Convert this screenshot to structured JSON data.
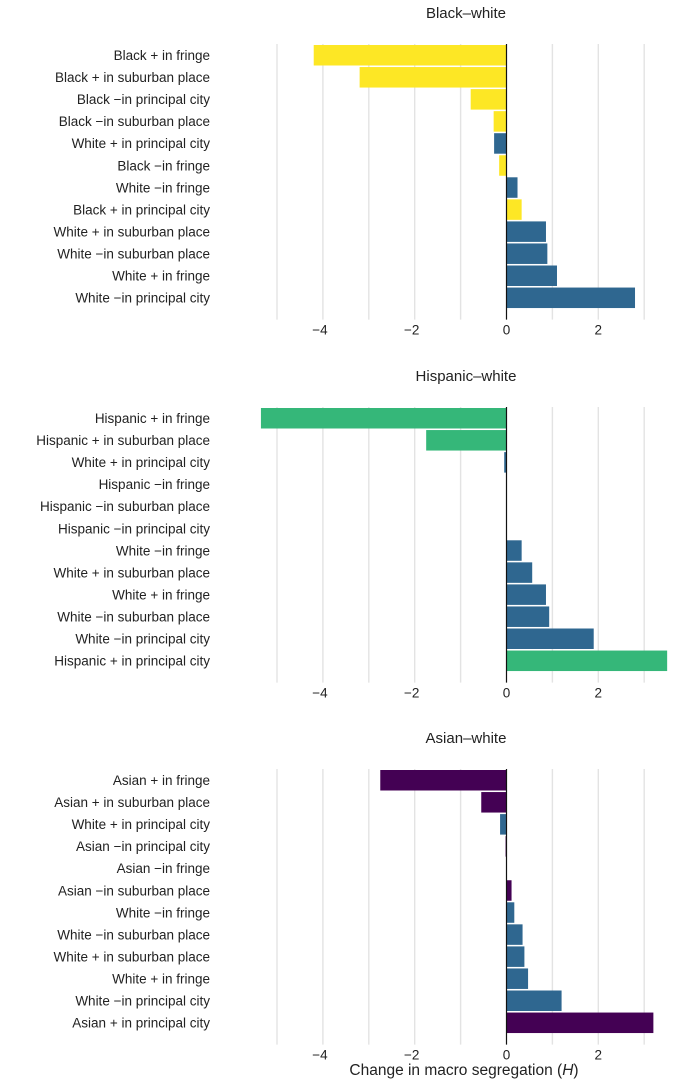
{
  "colors": {
    "white_group": "#2f6790",
    "black_group": "#fde725",
    "hispanic_group": "#35b779",
    "asian_group": "#440154",
    "gridline": "#e3e3e3"
  },
  "chart_data": [
    {
      "type": "bar",
      "orientation": "horizontal",
      "title": "Black–white",
      "xlim": [
        -5,
        3.5
      ],
      "xticks": [
        -4,
        -2,
        0,
        2
      ],
      "xtick_labels": [
        "−4",
        "−2",
        "0",
        "2"
      ],
      "grid": true,
      "categories": [
        "Black + in fringe",
        "Black + in suburban place",
        "Black −in principal city",
        "Black −in suburban place",
        "White + in principal city",
        "Black −in fringe",
        "White −in fringe",
        "Black + in principal city",
        "White + in suburban place",
        "White −in suburban place",
        "White + in fringe",
        "White −in principal city"
      ],
      "values": [
        -4.2,
        -3.2,
        -0.78,
        -0.28,
        -0.27,
        -0.16,
        0.24,
        0.33,
        0.86,
        0.89,
        1.1,
        2.8
      ],
      "groups": [
        "black",
        "black",
        "black",
        "black",
        "white",
        "black",
        "white",
        "black",
        "white",
        "white",
        "white",
        "white"
      ]
    },
    {
      "type": "bar",
      "orientation": "horizontal",
      "title": "Hispanic–white",
      "xlim": [
        -5,
        3.5
      ],
      "xticks": [
        -4,
        -2,
        0,
        2
      ],
      "xtick_labels": [
        "−4",
        "−2",
        "0",
        "2"
      ],
      "grid": true,
      "categories": [
        "Hispanic + in fringe",
        "Hispanic + in suburban place",
        "White + in principal city",
        "Hispanic −in fringe",
        "Hispanic −in suburban place",
        "Hispanic −in principal city",
        "White −in fringe",
        "White + in suburban place",
        "White + in fringe",
        "White −in suburban place",
        "White −in principal city",
        "Hispanic + in principal city"
      ],
      "values": [
        -5.35,
        -1.75,
        -0.05,
        -0.01,
        -0.01,
        0.0,
        0.33,
        0.56,
        0.86,
        0.93,
        1.9,
        3.5
      ],
      "groups": [
        "hispanic",
        "hispanic",
        "white",
        "hispanic",
        "hispanic",
        "hispanic",
        "white",
        "white",
        "white",
        "white",
        "white",
        "hispanic"
      ]
    },
    {
      "type": "bar",
      "orientation": "horizontal",
      "title": "Asian–white",
      "xlim": [
        -5,
        3.5
      ],
      "xticks": [
        -4,
        -2,
        0,
        2
      ],
      "xtick_labels": [
        "−4",
        "−2",
        "0",
        "2"
      ],
      "xlabel": "Change in macro segregation (H)",
      "grid": true,
      "categories": [
        "Asian + in fringe",
        "Asian + in suburban place",
        "White + in principal city",
        "Asian −in principal city",
        "Asian −in fringe",
        "Asian −in suburban place",
        "White −in fringe",
        "White −in suburban place",
        "White + in suburban place",
        "White + in fringe",
        "White −in principal city",
        "Asian + in principal city"
      ],
      "values": [
        -2.75,
        -0.55,
        -0.14,
        -0.02,
        0.0,
        0.11,
        0.17,
        0.35,
        0.39,
        0.47,
        1.2,
        3.2
      ],
      "groups": [
        "asian",
        "asian",
        "white",
        "asian",
        "asian",
        "asian",
        "white",
        "white",
        "white",
        "white",
        "white",
        "asian"
      ]
    }
  ],
  "axis_title": {
    "prefix": "Change in macro segregation (",
    "variable": "H",
    "suffix": ")"
  }
}
